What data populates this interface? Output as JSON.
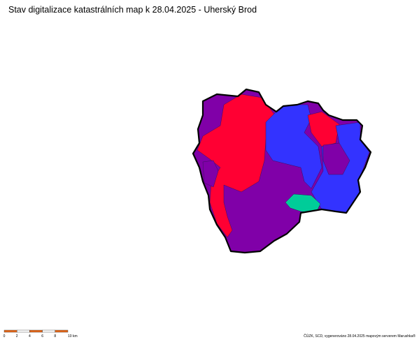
{
  "header": {
    "title": "Stav digitalizace katastrálních map k 28.04.2025 - Uherský Brod"
  },
  "scale_bar": {
    "labels": [
      "0",
      "2",
      "4",
      "6",
      "8",
      "10 km"
    ]
  },
  "footer": {
    "credit": "ČÚZK, SCD, vygenerováno 28.04.2025 mapovým serverem Marushka®"
  }
}
